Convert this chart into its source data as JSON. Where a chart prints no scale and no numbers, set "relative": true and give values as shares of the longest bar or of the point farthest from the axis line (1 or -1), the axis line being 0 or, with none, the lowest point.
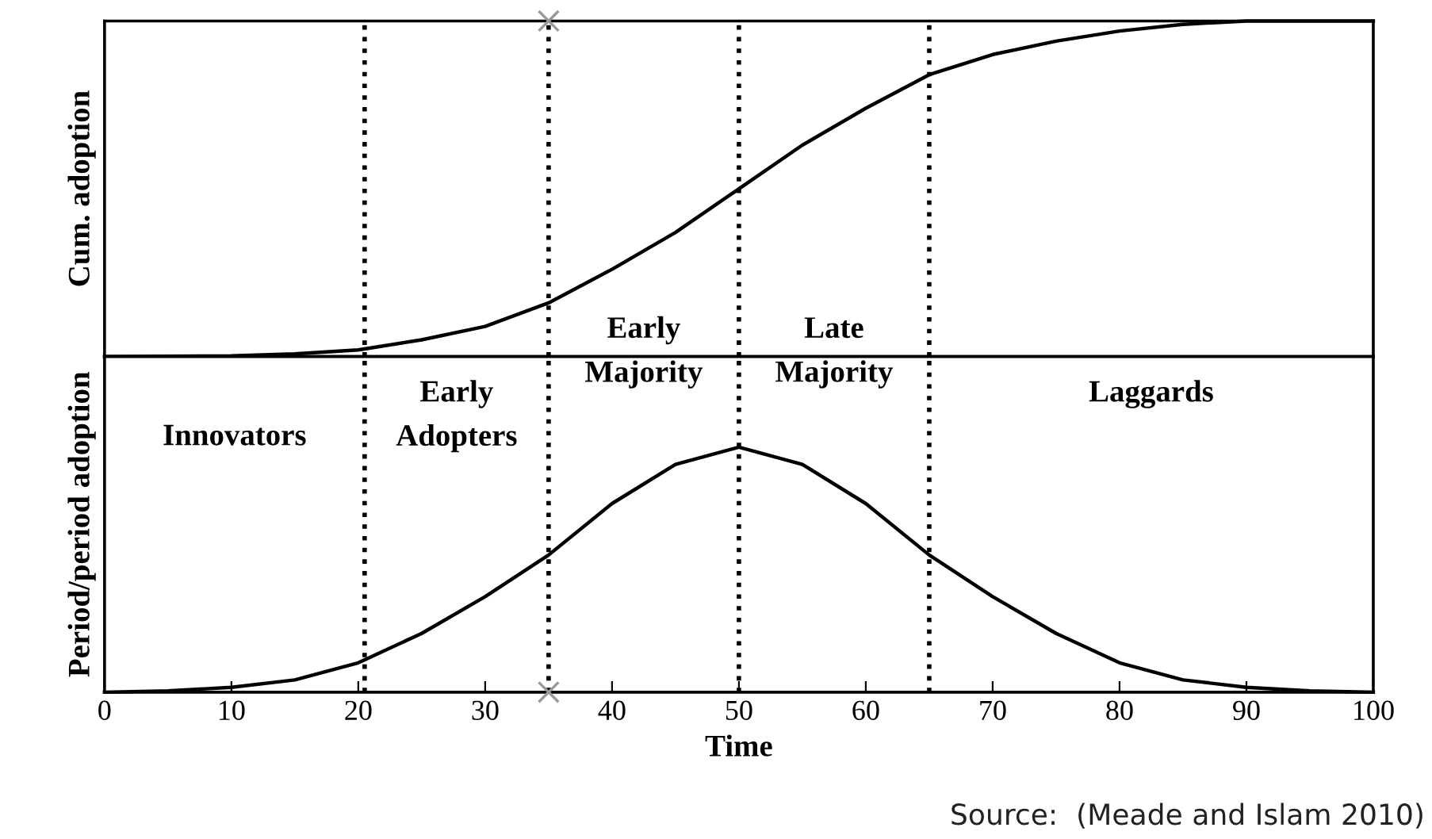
{
  "chart_data": [
    {
      "type": "line",
      "ylabel": "Cum. adoption",
      "relative": true,
      "xlim": [
        0,
        100
      ],
      "tick_labels": false,
      "grid": false,
      "legend": false,
      "series": [
        {
          "color": "#000000",
          "x": [
            0,
            10,
            15,
            20,
            25,
            30,
            35,
            40,
            45,
            50,
            55,
            60,
            65,
            70,
            75,
            80,
            85,
            90,
            95,
            100
          ],
          "values": [
            0,
            0.002,
            0.008,
            0.02,
            0.05,
            0.09,
            0.16,
            0.26,
            0.37,
            0.5,
            0.63,
            0.74,
            0.84,
            0.9,
            0.94,
            0.97,
            0.99,
            1.0,
            1.0,
            1.0
          ]
        },
        {
          "type": "scatter",
          "color": "#999999",
          "marker": "cross",
          "x": [
            35
          ],
          "values": [
            1
          ]
        }
      ],
      "ref_lines": [
        {
          "axis": "x",
          "value": 20.5,
          "line_style": "dotted"
        },
        {
          "axis": "x",
          "value": 35,
          "line_style": "dotted"
        },
        {
          "axis": "x",
          "value": 50,
          "line_style": "dotted"
        },
        {
          "axis": "x",
          "value": 65,
          "line_style": "dotted"
        }
      ]
    },
    {
      "type": "line",
      "ylabel": "Period/period adoption",
      "xlabel": "Time",
      "relative": true,
      "xlim": [
        0,
        100
      ],
      "xticks": [
        0,
        10,
        20,
        30,
        40,
        50,
        60,
        70,
        80,
        90,
        100
      ],
      "tick_labels": "x",
      "grid": false,
      "legend": false,
      "series": [
        {
          "color": "#000000",
          "x": [
            0,
            5,
            10,
            15,
            20,
            25,
            30,
            35,
            40,
            45,
            50,
            55,
            60,
            65,
            70,
            75,
            80,
            85,
            90,
            95,
            100
          ],
          "values": [
            0,
            0.005,
            0.02,
            0.05,
            0.12,
            0.24,
            0.39,
            0.56,
            0.77,
            0.93,
            1.0,
            0.93,
            0.77,
            0.56,
            0.39,
            0.24,
            0.12,
            0.05,
            0.02,
            0.005,
            0
          ]
        },
        {
          "type": "scatter",
          "color": "#999999",
          "marker": "cross",
          "x": [
            35
          ],
          "values": [
            0
          ]
        }
      ],
      "ref_lines": [
        {
          "axis": "x",
          "value": 20.5,
          "line_style": "dotted"
        },
        {
          "axis": "x",
          "value": 35,
          "line_style": "dotted"
        },
        {
          "axis": "x",
          "value": 50,
          "line_style": "dotted"
        },
        {
          "axis": "x",
          "value": 65,
          "line_style": "dotted"
        }
      ],
      "annotations": [
        "Innovators",
        "Early\nAdopters",
        "Early\nMajority",
        "Late\nMajority",
        "Laggards",
        "Source:  (Meade and Islam 2010)"
      ]
    }
  ]
}
